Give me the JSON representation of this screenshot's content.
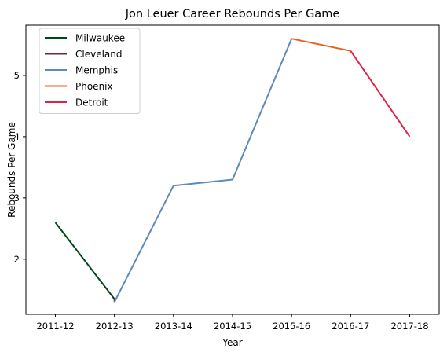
{
  "chart_data": {
    "type": "line",
    "title": "Jon Leuer Career Rebounds Per Game",
    "xlabel": "Year",
    "ylabel": "Rebounds Per Game",
    "categories": [
      "2011-12",
      "2012-13",
      "2013-14",
      "2014-15",
      "2015-16",
      "2016-17",
      "2017-18"
    ],
    "yticks": [
      2,
      3,
      4,
      5
    ],
    "ylim": [
      1.1,
      5.82
    ],
    "grid": false,
    "legend_position": "top-left",
    "series": [
      {
        "name": "Milwaukee",
        "color": "#00471b",
        "points": [
          {
            "x": "2011-12",
            "y": 2.6
          },
          {
            "x": "2012-13",
            "y": 1.35
          }
        ]
      },
      {
        "name": "Cleveland",
        "color": "#6f263d",
        "points": [
          {
            "x": "2012-13",
            "y": 1.35
          },
          {
            "x": "2012-13",
            "y": 1.3
          }
        ]
      },
      {
        "name": "Memphis",
        "color": "#5d8abb",
        "points": [
          {
            "x": "2012-13",
            "y": 1.3
          },
          {
            "x": "2013-14",
            "y": 3.2
          },
          {
            "x": "2014-15",
            "y": 3.3
          },
          {
            "x": "2015-16",
            "y": 5.6
          }
        ]
      },
      {
        "name": "Phoenix",
        "color": "#e56020",
        "points": [
          {
            "x": "2015-16",
            "y": 5.6
          },
          {
            "x": "2016-17",
            "y": 5.4
          }
        ]
      },
      {
        "name": "Detroit",
        "color": "#e0224a",
        "points": [
          {
            "x": "2016-17",
            "y": 5.4
          },
          {
            "x": "2017-18",
            "y": 4.0
          }
        ]
      }
    ]
  }
}
